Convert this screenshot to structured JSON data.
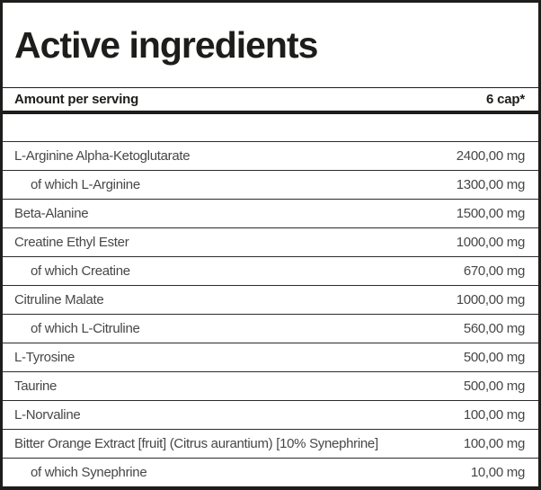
{
  "title": "Active ingredients",
  "table": {
    "header": {
      "label": "Amount per serving",
      "serving": "6 cap*"
    },
    "rows": [
      {
        "name": "L-Arginine Alpha-Ketoglutarate",
        "amount": "2400,00 mg",
        "indent": false
      },
      {
        "name": "of which L-Arginine",
        "amount": "1300,00 mg",
        "indent": true
      },
      {
        "name": "Beta-Alanine",
        "amount": "1500,00 mg",
        "indent": false
      },
      {
        "name": "Creatine Ethyl Ester",
        "amount": "1000,00 mg",
        "indent": false
      },
      {
        "name": "of which Creatine",
        "amount": "670,00 mg",
        "indent": true
      },
      {
        "name": "Citruline Malate",
        "amount": "1000,00 mg",
        "indent": false
      },
      {
        "name": "of which L-Citruline",
        "amount": "560,00 mg",
        "indent": true
      },
      {
        "name": "L-Tyrosine",
        "amount": "500,00 mg",
        "indent": false
      },
      {
        "name": "Taurine",
        "amount": "500,00 mg",
        "indent": false
      },
      {
        "name": "L-Norvaline",
        "amount": "100,00 mg",
        "indent": false
      },
      {
        "name": "Bitter Orange Extract [fruit] (Citrus aurantium) [10% Synephrine]",
        "amount": "100,00 mg",
        "indent": false
      },
      {
        "name": "of which Synephrine",
        "amount": "10,00 mg",
        "indent": true
      }
    ]
  },
  "colors": {
    "background": "#ffffff",
    "border": "#1d1d1b",
    "title_text": "#1d1d1b",
    "header_text": "#1d1d1b",
    "row_text": "#47474a",
    "separator": "#2c2c2c"
  }
}
